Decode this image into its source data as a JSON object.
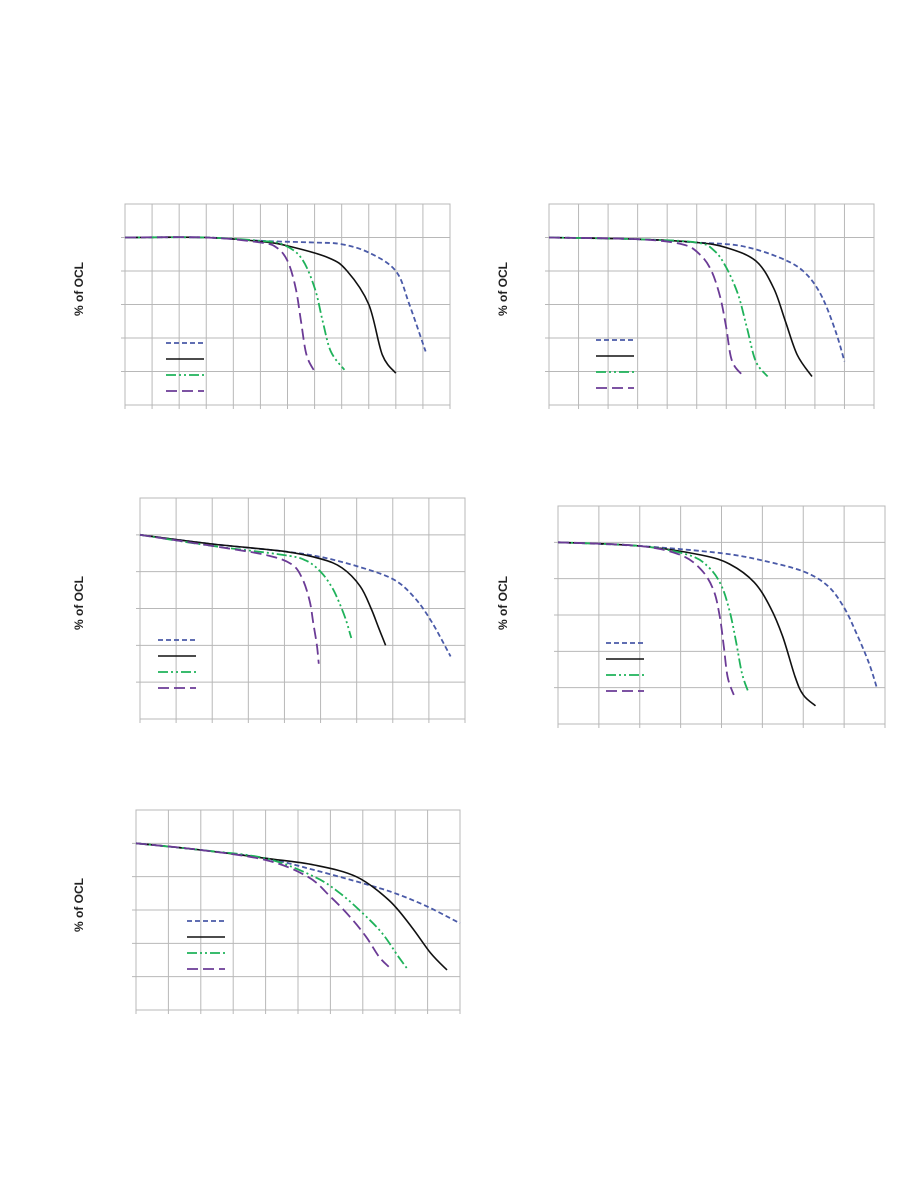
{
  "colors": {
    "dashed_blue": "#4a5aa8",
    "solid_black": "#111111",
    "dashdot_green": "#1fb25a",
    "longdash_purple": "#6b3b96",
    "grid": "#b8b8b8"
  },
  "chart_data": [
    {
      "type": "line",
      "title": "",
      "xlabel": "",
      "ylabel": "% of OCL",
      "xlim": [
        0,
        12
      ],
      "ylim": [
        0,
        6
      ],
      "grid": true,
      "legend": "lower-left",
      "x_gridlines": 12,
      "y_gridlines": 6,
      "series": [
        {
          "style": "dashed_blue",
          "x": [
            0,
            3,
            5,
            7,
            8,
            9,
            10,
            10.5,
            11.1
          ],
          "y": [
            5,
            5,
            4.9,
            4.85,
            4.8,
            4.55,
            4.0,
            3.0,
            1.6
          ]
        },
        {
          "style": "solid_black",
          "x": [
            0,
            3,
            5,
            6,
            7.5,
            8.2,
            9,
            9.5,
            10
          ],
          "y": [
            5,
            5,
            4.88,
            4.75,
            4.4,
            4.0,
            3.0,
            1.5,
            0.95
          ]
        },
        {
          "style": "dashdot_green",
          "x": [
            0,
            3,
            5,
            5.8,
            6.5,
            7,
            7.3,
            7.6,
            8.1
          ],
          "y": [
            5,
            5,
            4.9,
            4.8,
            4.4,
            3.5,
            2.5,
            1.6,
            1.05
          ]
        },
        {
          "style": "longdash_purple",
          "x": [
            0,
            3,
            5,
            5.6,
            6.0,
            6.3,
            6.5,
            6.7,
            7.0
          ],
          "y": [
            5,
            5,
            4.85,
            4.7,
            4.3,
            3.5,
            2.5,
            1.5,
            1.0
          ]
        }
      ]
    },
    {
      "type": "line",
      "title": "",
      "xlabel": "",
      "ylabel": "% of OCL",
      "xlim": [
        0,
        11
      ],
      "ylim": [
        0,
        6
      ],
      "grid": true,
      "legend": "lower-left",
      "x_gridlines": 11,
      "y_gridlines": 6,
      "series": [
        {
          "style": "dashed_blue",
          "x": [
            0,
            3,
            5,
            6.5,
            7.8,
            8.6,
            9.2,
            9.7,
            10.0
          ],
          "y": [
            5,
            4.95,
            4.85,
            4.75,
            4.4,
            4.0,
            3.3,
            2.2,
            1.3
          ]
        },
        {
          "style": "solid_black",
          "x": [
            0,
            3,
            5,
            6,
            7,
            7.6,
            8.0,
            8.4,
            8.9
          ],
          "y": [
            5,
            4.95,
            4.85,
            4.7,
            4.3,
            3.5,
            2.5,
            1.5,
            0.85
          ]
        },
        {
          "style": "dashdot_green",
          "x": [
            0,
            3,
            5,
            5.6,
            6.0,
            6.4,
            6.7,
            7.0,
            7.4
          ],
          "y": [
            5,
            4.95,
            4.85,
            4.6,
            4.1,
            3.3,
            2.3,
            1.3,
            0.85
          ]
        },
        {
          "style": "longdash_purple",
          "x": [
            0,
            3,
            4.5,
            5.1,
            5.5,
            5.8,
            6.0,
            6.2,
            6.6
          ],
          "y": [
            5,
            4.95,
            4.8,
            4.5,
            4.0,
            3.2,
            2.3,
            1.3,
            0.85
          ]
        }
      ]
    },
    {
      "type": "line",
      "title": "",
      "xlabel": "",
      "ylabel": "% of OCL",
      "xlim": [
        0,
        9
      ],
      "ylim": [
        0,
        6
      ],
      "grid": true,
      "legend": "lower-left",
      "x_gridlines": 9,
      "y_gridlines": 6,
      "series": [
        {
          "style": "dashed_blue",
          "x": [
            0,
            2,
            4,
            5,
            6,
            7,
            7.6,
            8.1,
            8.6
          ],
          "y": [
            5,
            4.75,
            4.55,
            4.4,
            4.15,
            3.8,
            3.3,
            2.6,
            1.7
          ]
        },
        {
          "style": "solid_black",
          "x": [
            0,
            2,
            4,
            5,
            5.6,
            6.1,
            6.4,
            6.6,
            6.8
          ],
          "y": [
            5,
            4.75,
            4.55,
            4.35,
            4.1,
            3.6,
            3.0,
            2.5,
            2.0
          ]
        },
        {
          "style": "dashdot_green",
          "x": [
            0,
            2,
            4,
            4.6,
            5.0,
            5.3,
            5.5,
            5.7,
            5.85
          ],
          "y": [
            5,
            4.7,
            4.45,
            4.3,
            4.0,
            3.6,
            3.2,
            2.7,
            2.2
          ]
        },
        {
          "style": "longdash_purple",
          "x": [
            0,
            2,
            3.5,
            4.2,
            4.5,
            4.7,
            4.8,
            4.9,
            4.95
          ],
          "y": [
            5,
            4.7,
            4.45,
            4.2,
            3.8,
            3.2,
            2.6,
            2.0,
            1.5
          ]
        }
      ]
    },
    {
      "type": "line",
      "title": "",
      "xlabel": "",
      "ylabel": "% of OCL",
      "xlim": [
        0,
        8
      ],
      "ylim": [
        0,
        6
      ],
      "grid": true,
      "legend": "lower-left",
      "x_gridlines": 8,
      "y_gridlines": 6,
      "series": [
        {
          "style": "dashed_blue",
          "x": [
            0,
            2,
            4,
            5,
            6,
            6.6,
            7.0,
            7.3,
            7.6,
            7.8
          ],
          "y": [
            5,
            4.9,
            4.7,
            4.5,
            4.2,
            3.8,
            3.2,
            2.5,
            1.7,
            1.0
          ]
        },
        {
          "style": "solid_black",
          "x": [
            0,
            2,
            3.5,
            4.2,
            4.8,
            5.2,
            5.5,
            5.8,
            6.0,
            6.3
          ],
          "y": [
            5,
            4.9,
            4.65,
            4.4,
            3.9,
            3.2,
            2.4,
            1.3,
            0.8,
            0.5
          ]
        },
        {
          "style": "dashdot_green",
          "x": [
            0,
            2,
            3.2,
            3.7,
            4.0,
            4.2,
            4.35,
            4.5,
            4.65
          ],
          "y": [
            5,
            4.9,
            4.65,
            4.3,
            3.8,
            3.1,
            2.3,
            1.4,
            0.9
          ]
        },
        {
          "style": "longdash_purple",
          "x": [
            0,
            2,
            3.0,
            3.5,
            3.8,
            3.95,
            4.05,
            4.15,
            4.3
          ],
          "y": [
            5,
            4.9,
            4.65,
            4.25,
            3.7,
            3.0,
            2.2,
            1.3,
            0.8
          ]
        }
      ]
    },
    {
      "type": "line",
      "title": "",
      "xlabel": "",
      "ylabel": "% of OCL",
      "xlim": [
        0,
        10
      ],
      "ylim": [
        0,
        6
      ],
      "grid": true,
      "legend": "lower-left",
      "x_gridlines": 10,
      "y_gridlines": 6,
      "series": [
        {
          "style": "dashed_blue",
          "x": [
            0,
            2,
            4,
            5.5,
            7,
            8,
            9,
            10
          ],
          "y": [
            5,
            4.8,
            4.55,
            4.2,
            3.8,
            3.5,
            3.1,
            2.6
          ]
        },
        {
          "style": "solid_black",
          "x": [
            0,
            2,
            4,
            5.5,
            6.8,
            7.8,
            8.5,
            9.1,
            9.6
          ],
          "y": [
            5,
            4.8,
            4.55,
            4.35,
            4.0,
            3.3,
            2.5,
            1.7,
            1.2
          ]
        },
        {
          "style": "dashdot_green",
          "x": [
            0,
            2,
            4,
            5.5,
            6.3,
            7.0,
            7.6,
            8.1,
            8.4
          ],
          "y": [
            5,
            4.8,
            4.55,
            4.0,
            3.5,
            2.9,
            2.3,
            1.6,
            1.2
          ]
        },
        {
          "style": "longdash_purple",
          "x": [
            0,
            2,
            4,
            5.3,
            6.0,
            6.6,
            7.1,
            7.5,
            7.8
          ],
          "y": [
            5,
            4.8,
            4.5,
            4.0,
            3.4,
            2.8,
            2.2,
            1.6,
            1.3
          ]
        }
      ]
    }
  ]
}
